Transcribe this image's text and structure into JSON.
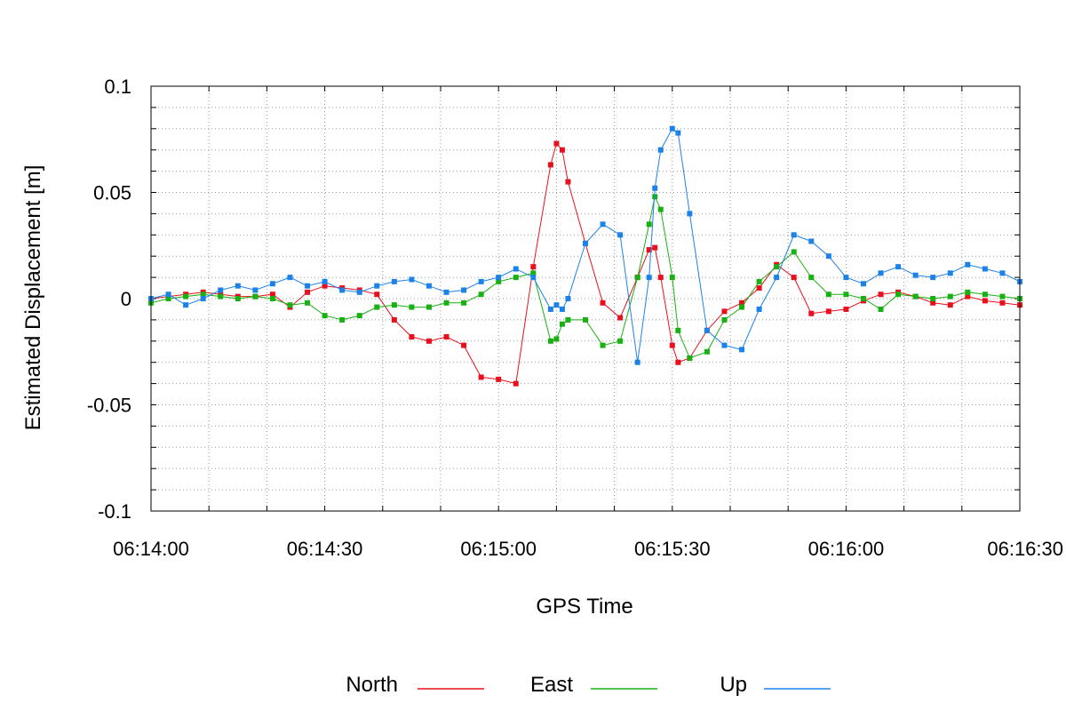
{
  "chart_data": {
    "type": "line",
    "xlabel": "GPS Time",
    "ylabel": "Estimated Displacement [m]",
    "ylim": [
      -0.1,
      0.1
    ],
    "xlim_seconds": [
      0,
      150
    ],
    "grid": true,
    "legend_placement": "bottom-center",
    "x_tick_labels": [
      "06:14:00",
      "06:14:30",
      "06:15:00",
      "06:15:30",
      "06:16:00",
      "06:16:30"
    ],
    "y_tick_labels": [
      "0.1",
      "0.05",
      "0",
      "-0.05",
      "-0.1"
    ],
    "x_times": [
      "06:14:00",
      "06:14:03",
      "06:14:06",
      "06:14:09",
      "06:14:12",
      "06:14:15",
      "06:14:18",
      "06:14:21",
      "06:14:24",
      "06:14:27",
      "06:14:30",
      "06:14:33",
      "06:14:36",
      "06:14:39",
      "06:14:42",
      "06:14:45",
      "06:14:48",
      "06:14:51",
      "06:14:54",
      "06:14:57",
      "06:15:00",
      "06:15:03",
      "06:15:06",
      "06:15:09",
      "06:15:10",
      "06:15:11",
      "06:15:12",
      "06:15:15",
      "06:15:18",
      "06:15:21",
      "06:15:24",
      "06:15:26",
      "06:15:27",
      "06:15:28",
      "06:15:30",
      "06:15:31",
      "06:15:33",
      "06:15:36",
      "06:15:39",
      "06:15:42",
      "06:15:45",
      "06:15:48",
      "06:15:51",
      "06:15:54",
      "06:15:57",
      "06:16:00",
      "06:16:03",
      "06:16:06",
      "06:16:09",
      "06:16:12",
      "06:16:15",
      "06:16:18",
      "06:16:21",
      "06:16:24",
      "06:16:27",
      "06:16:30"
    ],
    "series": [
      {
        "name": "North",
        "color": "#e8101c",
        "values": [
          0.0,
          0.001,
          0.002,
          0.003,
          0.002,
          0.001,
          0.001,
          0.002,
          -0.004,
          0.003,
          0.006,
          0.005,
          0.004,
          0.002,
          -0.01,
          -0.018,
          -0.02,
          -0.018,
          -0.022,
          -0.037,
          -0.038,
          -0.04,
          0.015,
          0.063,
          0.073,
          0.07,
          0.055,
          0.026,
          -0.002,
          -0.009,
          0.01,
          0.023,
          0.024,
          0.01,
          -0.022,
          -0.03,
          -0.028,
          -0.015,
          -0.006,
          -0.002,
          0.005,
          0.016,
          0.01,
          -0.007,
          -0.006,
          -0.005,
          -0.001,
          0.002,
          0.003,
          0.001,
          -0.002,
          -0.003,
          0.001,
          -0.001,
          -0.002,
          -0.003
        ]
      },
      {
        "name": "East",
        "color": "#18b012",
        "values": [
          -0.002,
          0.0,
          0.001,
          0.002,
          0.001,
          0.0,
          0.001,
          0.0,
          -0.003,
          -0.002,
          -0.008,
          -0.01,
          -0.008,
          -0.004,
          -0.003,
          -0.004,
          -0.004,
          -0.002,
          -0.002,
          0.002,
          0.008,
          0.01,
          0.012,
          -0.02,
          -0.019,
          -0.012,
          -0.01,
          -0.01,
          -0.022,
          -0.02,
          0.01,
          0.035,
          0.048,
          0.042,
          0.01,
          -0.015,
          -0.028,
          -0.025,
          -0.01,
          -0.004,
          0.008,
          0.015,
          0.022,
          0.01,
          0.002,
          0.002,
          0.0,
          -0.005,
          0.002,
          0.001,
          0.0,
          0.001,
          0.003,
          0.002,
          0.001,
          0.0
        ]
      },
      {
        "name": "Up",
        "color": "#1c82e8",
        "values": [
          0.0,
          0.002,
          -0.003,
          0.0,
          0.004,
          0.006,
          0.004,
          0.007,
          0.01,
          0.006,
          0.008,
          0.004,
          0.003,
          0.006,
          0.008,
          0.009,
          0.006,
          0.003,
          0.004,
          0.008,
          0.01,
          0.014,
          0.01,
          -0.005,
          -0.003,
          -0.005,
          0.0,
          0.026,
          0.035,
          0.03,
          -0.03,
          0.01,
          0.052,
          0.07,
          0.08,
          0.078,
          0.04,
          -0.015,
          -0.022,
          -0.024,
          -0.005,
          0.01,
          0.03,
          0.027,
          0.02,
          0.01,
          0.007,
          0.012,
          0.015,
          0.011,
          0.01,
          0.012,
          0.016,
          0.014,
          0.012,
          0.008
        ]
      }
    ]
  }
}
